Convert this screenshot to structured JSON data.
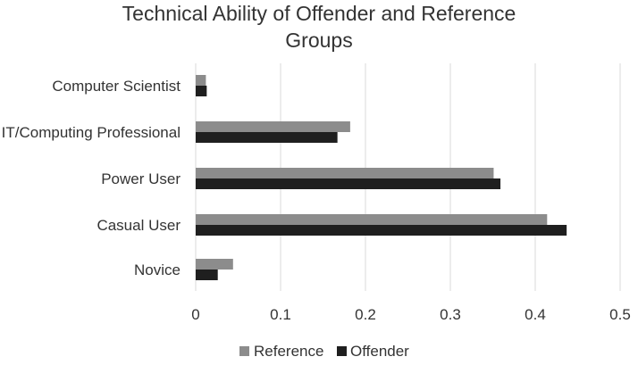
{
  "chart_data": {
    "type": "bar",
    "orientation": "horizontal",
    "title_lines": [
      "Technical Ability of Offender and Reference",
      "Groups"
    ],
    "categories": [
      "Computer Scientist",
      "IT/Computing Professional",
      "Power User",
      "Casual User",
      "Novice"
    ],
    "series": [
      {
        "name": "Reference",
        "color": "#8c8c8c",
        "values": [
          0.012,
          0.182,
          0.351,
          0.414,
          0.044
        ]
      },
      {
        "name": "Offender",
        "color": "#1f1f1f",
        "values": [
          0.013,
          0.167,
          0.359,
          0.437,
          0.026
        ]
      }
    ],
    "xlim": [
      0,
      0.5
    ],
    "xticks": [
      "0",
      "0.1",
      "0.2",
      "0.3",
      "0.4",
      "0.5"
    ],
    "grid": "vertical",
    "legend_position": "bottom"
  }
}
